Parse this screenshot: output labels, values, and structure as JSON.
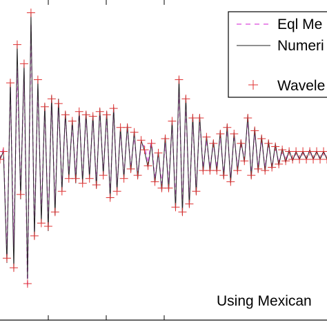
{
  "chart_data": {
    "type": "line",
    "title": "",
    "xlabel": "",
    "ylabel": "",
    "grid": false,
    "legend_position": "top-right",
    "annotation": "Using Mexican",
    "x": [
      0,
      1,
      2,
      3,
      4,
      5,
      6,
      7,
      8,
      9,
      10,
      11,
      12,
      13,
      14,
      15,
      16,
      17,
      18,
      19,
      20,
      21,
      22,
      23,
      24,
      25,
      26,
      27,
      28,
      29,
      30,
      31,
      32,
      33,
      34,
      35,
      36,
      37,
      38,
      39,
      40,
      41,
      42,
      43,
      44,
      45,
      46,
      47,
      48,
      49,
      50,
      51,
      52,
      53,
      54,
      55,
      56,
      57,
      58,
      59,
      60,
      61,
      62,
      63,
      64,
      65,
      66,
      67,
      68,
      69,
      70,
      71,
      72,
      73,
      74,
      75,
      76,
      77,
      78,
      79,
      80,
      81,
      82,
      83,
      84,
      85,
      86,
      87,
      88,
      89,
      90,
      91,
      92,
      93,
      94,
      95
    ],
    "xlim": [
      0,
      95
    ],
    "ylim": [
      -1.0,
      1.0
    ],
    "series": [
      {
        "name": "Eql Me",
        "color": "#e066e0",
        "style": "dashed",
        "values": [
          0.0,
          0.07,
          -0.6,
          0.45,
          -0.55,
          0.57,
          -0.2,
          0.55,
          -0.8,
          0.85,
          -0.45,
          0.45,
          -0.35,
          0.32,
          -0.4,
          0.37,
          -0.3,
          0.35,
          -0.18,
          0.28,
          -0.1,
          0.22,
          -0.1,
          0.3,
          -0.13,
          0.27,
          -0.1,
          0.26,
          -0.15,
          0.3,
          -0.08,
          0.27,
          -0.23,
          0.32,
          -0.18,
          0.18,
          -0.1,
          0.2,
          -0.05,
          0.15,
          -0.1,
          0.1,
          0.08,
          -0.02,
          0.12,
          -0.12,
          0.03,
          -0.15,
          0.1,
          -0.15,
          0.22,
          -0.27,
          0.45,
          -0.3,
          0.35,
          -0.27,
          0.25,
          -0.2,
          0.25,
          -0.05,
          0.12,
          -0.05,
          0.1,
          -0.05,
          0.15,
          -0.1,
          0.2,
          -0.12,
          0.15,
          -0.05,
          0.1,
          0.0,
          0.25,
          -0.1,
          0.17,
          -0.05,
          0.12,
          -0.05,
          0.1,
          -0.05,
          0.08,
          -0.02,
          0.05,
          0.0,
          0.05,
          0.0,
          0.04,
          0.0,
          0.05,
          0.0,
          0.06,
          0.0,
          0.05,
          0.0,
          0.05,
          0.0
        ]
      },
      {
        "name": "Numeri",
        "color": "#222222",
        "style": "solid",
        "values": [
          0.0,
          0.05,
          -0.65,
          0.5,
          -0.7,
          0.72,
          -0.25,
          0.6,
          -0.75,
          0.92,
          -0.5,
          0.5,
          -0.4,
          0.35,
          -0.45,
          0.4,
          -0.35,
          0.38,
          -0.2,
          0.3,
          -0.12,
          0.25,
          -0.15,
          0.3,
          -0.15,
          0.3,
          -0.12,
          0.28,
          -0.18,
          0.32,
          -0.1,
          0.3,
          -0.25,
          0.33,
          -0.2,
          0.2,
          -0.12,
          0.22,
          -0.08,
          0.18,
          -0.12,
          0.12,
          0.05,
          -0.05,
          0.1,
          -0.15,
          0.05,
          -0.2,
          0.15,
          -0.2,
          0.25,
          -0.32,
          0.52,
          -0.35,
          0.4,
          -0.3,
          0.28,
          -0.22,
          0.28,
          -0.08,
          0.15,
          -0.08,
          0.12,
          -0.08,
          0.18,
          -0.12,
          0.22,
          -0.15,
          0.17,
          -0.08,
          0.12,
          -0.02,
          0.28,
          -0.12,
          0.2,
          -0.08,
          0.15,
          -0.08,
          0.12,
          -0.06,
          0.1,
          -0.04,
          0.07,
          -0.02,
          0.06,
          -0.01,
          0.05,
          0.0,
          0.05,
          0.0,
          0.06,
          0.0,
          0.05,
          0.0,
          0.05,
          0.0
        ]
      },
      {
        "name": "Wavele",
        "color": "#e03030",
        "style": "markers",
        "marker": "+",
        "values": [
          0.0,
          0.05,
          -0.62,
          0.48,
          -0.68,
          0.72,
          -0.22,
          0.6,
          -0.78,
          0.92,
          -0.48,
          0.5,
          -0.4,
          0.33,
          -0.42,
          0.38,
          -0.33,
          0.35,
          -0.2,
          0.28,
          -0.12,
          0.24,
          -0.12,
          0.3,
          -0.15,
          0.28,
          -0.12,
          0.27,
          -0.16,
          0.3,
          -0.1,
          0.28,
          -0.24,
          0.32,
          -0.2,
          0.2,
          -0.12,
          0.2,
          -0.06,
          0.17,
          -0.1,
          0.12,
          0.06,
          -0.04,
          0.1,
          -0.14,
          0.04,
          -0.18,
          0.13,
          -0.18,
          0.24,
          -0.3,
          0.5,
          -0.33,
          0.38,
          -0.28,
          0.26,
          -0.2,
          0.26,
          -0.07,
          0.14,
          -0.07,
          0.1,
          -0.07,
          0.16,
          -0.1,
          0.2,
          -0.14,
          0.16,
          -0.07,
          0.1,
          -0.01,
          0.26,
          -0.1,
          0.18,
          -0.06,
          0.13,
          -0.07,
          0.1,
          -0.05,
          0.08,
          -0.03,
          0.06,
          -0.01,
          0.05,
          0.0,
          0.05,
          0.0,
          0.05,
          0.0,
          0.05,
          0.0,
          0.05,
          0.0,
          0.05,
          0.0
        ]
      }
    ]
  }
}
